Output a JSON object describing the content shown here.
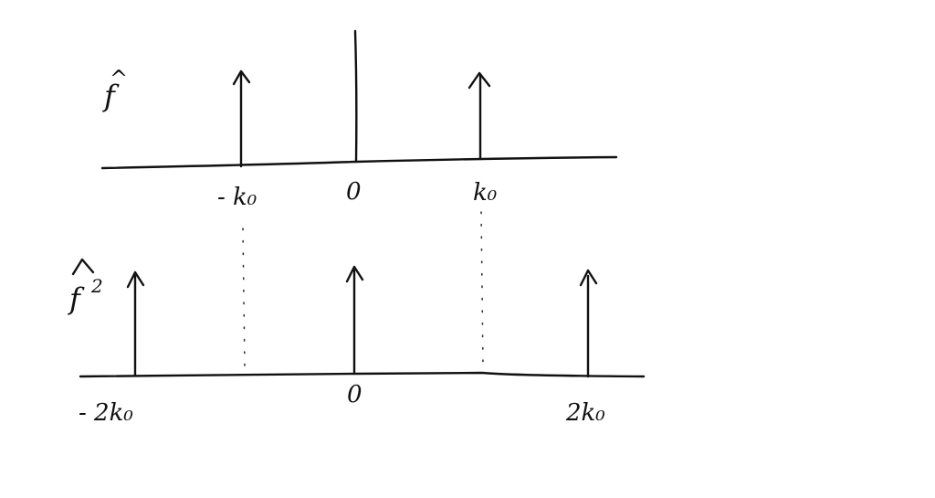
{
  "top_panel": {
    "function_label": "f",
    "hat_symbol": "^",
    "tick_labels": {
      "neg_k0": "- k₀",
      "zero": "0",
      "pos_k0": "k₀"
    }
  },
  "bottom_panel": {
    "function_label": "f",
    "exponent": "2",
    "hat_symbol": "^",
    "tick_labels": {
      "neg_2k0": "- 2k₀",
      "zero": "0",
      "pos_2k0": "2k₀"
    }
  },
  "colors": {
    "ink": "#111111",
    "background": "#ffffff"
  }
}
